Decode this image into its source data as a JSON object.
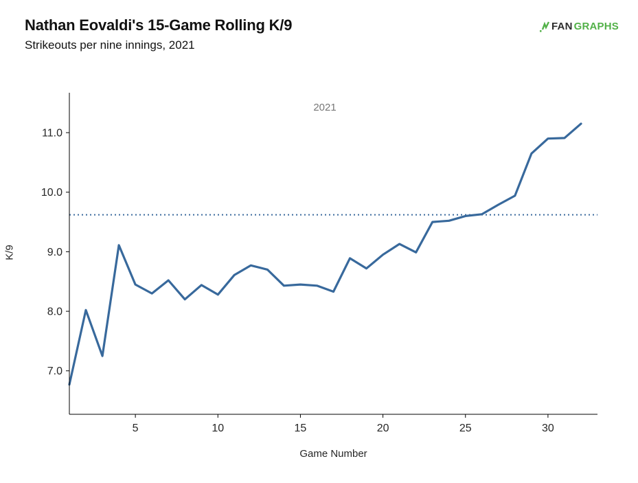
{
  "header": {
    "title": "Nathan Eovaldi's 15-Game Rolling K/9",
    "subtitle": "Strikeouts per nine innings, 2021"
  },
  "logo": {
    "fan": "FAN",
    "graphs": "GRAPHS",
    "green": "#52b148",
    "dark": "#2d2d2d"
  },
  "chart_data": {
    "type": "line",
    "title": "Nathan Eovaldi's 15-Game Rolling K/9",
    "subtitle": "Strikeouts per nine innings, 2021",
    "legend": "2021",
    "legend_position": "top-center",
    "xlabel": "Game Number",
    "ylabel": "K/9",
    "x": [
      1,
      2,
      3,
      4,
      5,
      6,
      7,
      8,
      9,
      10,
      11,
      12,
      13,
      14,
      15,
      16,
      17,
      18,
      19,
      20,
      21,
      22,
      23,
      24,
      25,
      26,
      27,
      28,
      29,
      30,
      31,
      32
    ],
    "series": [
      {
        "name": "2021",
        "values": [
          6.77,
          8.02,
          7.25,
          9.11,
          8.45,
          8.3,
          8.52,
          8.2,
          8.44,
          8.28,
          8.61,
          8.77,
          8.7,
          8.43,
          8.45,
          8.43,
          8.33,
          8.89,
          8.72,
          8.95,
          9.13,
          8.99,
          9.5,
          9.52,
          9.6,
          9.63,
          9.79,
          9.94,
          10.65,
          10.9,
          10.91,
          11.15
        ]
      }
    ],
    "reference_line": {
      "value": 9.62,
      "style": "dotted"
    },
    "x_ticks": [
      5,
      10,
      15,
      20,
      25,
      30
    ],
    "y_ticks": [
      7.0,
      8.0,
      9.0,
      10.0,
      11.0
    ],
    "xlim": [
      1,
      33
    ],
    "ylim": [
      6.27,
      11.67
    ],
    "line_color": "#38699c",
    "axis_color": "#000000",
    "tick_label_color": "#262626",
    "grid": false
  }
}
